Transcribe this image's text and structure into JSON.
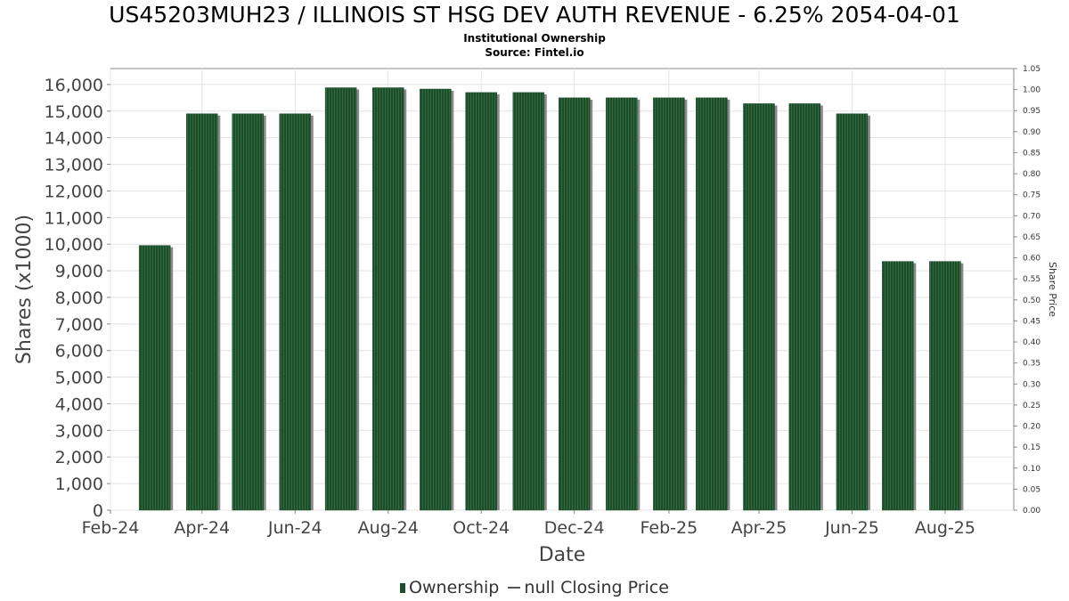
{
  "header": {
    "title": "US45203MUH23 / ILLINOIS ST HSG DEV AUTH REVENUE - 6.25% 2054-04-01",
    "subtitle": "Institutional Ownership",
    "source": "Source: Fintel.io"
  },
  "legend": {
    "ownership_label": "Ownership",
    "price_label": "null Closing Price"
  },
  "colors": {
    "bar": "#1e4d2b",
    "bar_stripe": "#2f6b3c",
    "bar_shadow": "#8a8a8a",
    "grid": "#e3e3e3",
    "axis": "#888888"
  },
  "chart_data": {
    "type": "bar",
    "xlabel": "Date",
    "ylabel": "Shares (x1000)",
    "y2label": "Share Price",
    "x_tick_labels": [
      "Feb-24",
      "Apr-24",
      "Jun-24",
      "Aug-24",
      "Oct-24",
      "Dec-24",
      "Feb-25",
      "Apr-25",
      "Jun-25",
      "Aug-25"
    ],
    "y_ticks": [
      0,
      1000,
      2000,
      3000,
      4000,
      5000,
      6000,
      7000,
      8000,
      9000,
      10000,
      11000,
      12000,
      13000,
      14000,
      15000,
      16000
    ],
    "y_tick_labels": [
      "0",
      "1,000",
      "2,000",
      "3,000",
      "4,000",
      "5,000",
      "6,000",
      "7,000",
      "8,000",
      "9,000",
      "10,000",
      "11,000",
      "12,000",
      "13,000",
      "14,000",
      "15,000",
      "16,000"
    ],
    "y2_tick_labels": [
      "0.00",
      "0.05",
      "0.10",
      "0.15",
      "0.20",
      "0.25",
      "0.30",
      "0.35",
      "0.40",
      "0.45",
      "0.50",
      "0.55",
      "0.60",
      "0.65",
      "0.70",
      "0.75",
      "0.80",
      "0.85",
      "0.90",
      "0.95",
      "1.00",
      "1.05"
    ],
    "ylim": [
      0,
      16600
    ],
    "y2lim": [
      0,
      1.05
    ],
    "x_start": "2024-02-01",
    "x_end": "2025-09-15",
    "grid": true,
    "legend_position": "bottom",
    "series": [
      {
        "name": "Ownership",
        "points": [
          {
            "date": "2024-03-01",
            "value": 9950
          },
          {
            "date": "2024-04-01",
            "value": 14900
          },
          {
            "date": "2024-05-01",
            "value": 14900
          },
          {
            "date": "2024-06-01",
            "value": 14900
          },
          {
            "date": "2024-07-01",
            "value": 15880
          },
          {
            "date": "2024-08-01",
            "value": 15880
          },
          {
            "date": "2024-09-01",
            "value": 15830
          },
          {
            "date": "2024-10-01",
            "value": 15700
          },
          {
            "date": "2024-11-01",
            "value": 15700
          },
          {
            "date": "2024-12-01",
            "value": 15500
          },
          {
            "date": "2025-01-01",
            "value": 15500
          },
          {
            "date": "2025-02-01",
            "value": 15500
          },
          {
            "date": "2025-03-01",
            "value": 15500
          },
          {
            "date": "2025-04-01",
            "value": 15280
          },
          {
            "date": "2025-05-01",
            "value": 15280
          },
          {
            "date": "2025-06-01",
            "value": 14900
          },
          {
            "date": "2025-07-01",
            "value": 9350
          },
          {
            "date": "2025-08-01",
            "value": 9350
          }
        ]
      }
    ]
  }
}
